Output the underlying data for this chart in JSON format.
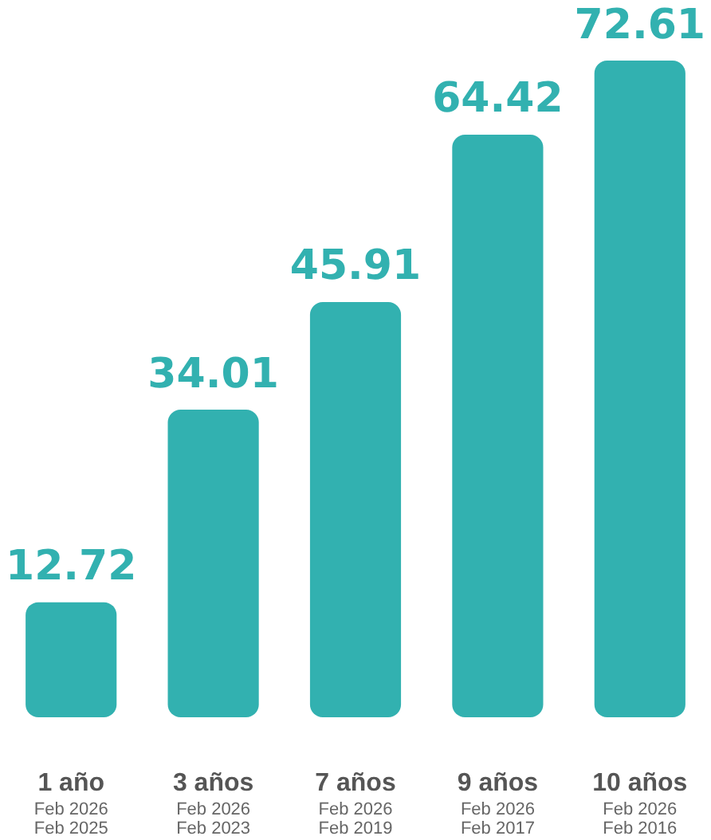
{
  "chart_data": {
    "type": "bar",
    "categories": [
      "1 año\nFeb 2026\nFeb 2025",
      "3 años\nFeb 2026\nFeb 2023",
      "7 años\nFeb 2026\nFeb 2019",
      "9 años\nFeb 2026\nFeb 2017",
      "10 años\nFeb 2026\nFeb 2016"
    ],
    "values": [
      12.72,
      34.01,
      45.91,
      64.42,
      72.61
    ],
    "color": "#32b1b0",
    "data_labels": true
  }
}
